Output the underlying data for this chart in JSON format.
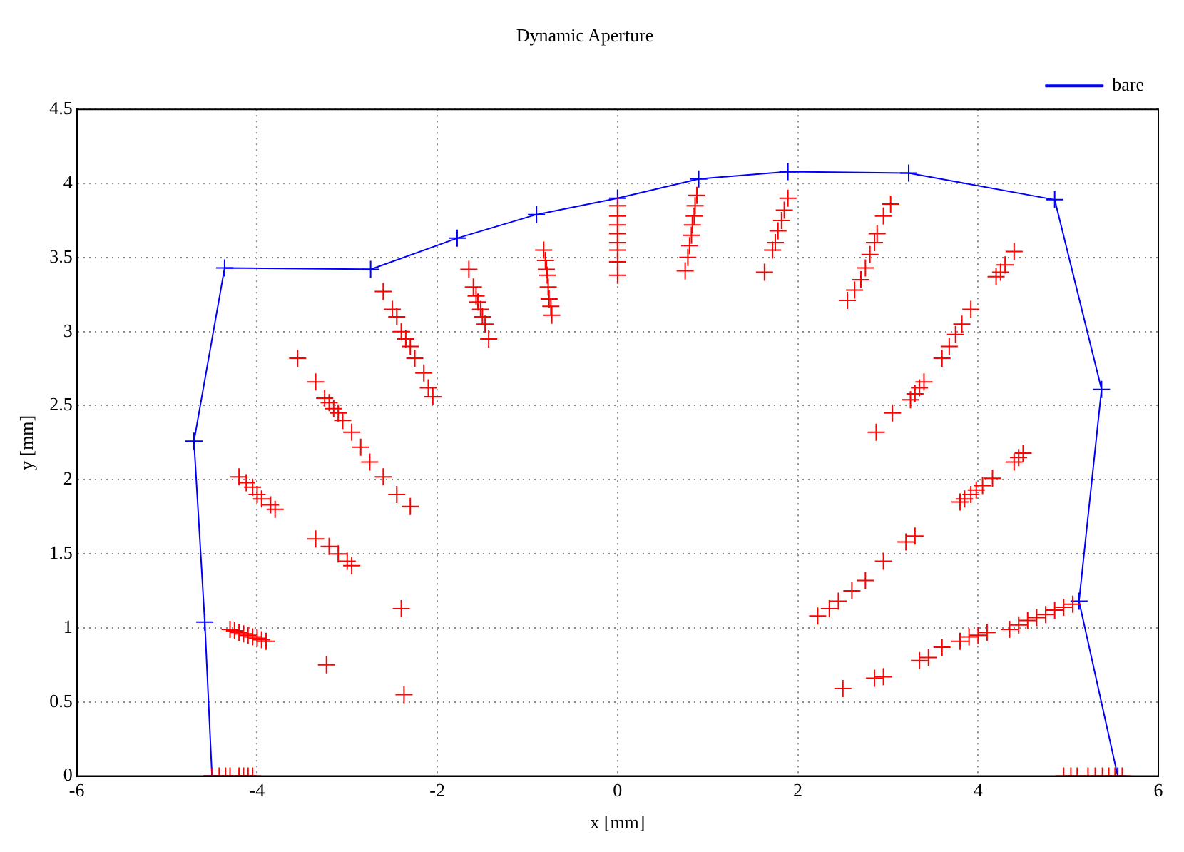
{
  "chart_data": {
    "type": "scatter",
    "title": "Dynamic Aperture",
    "xlabel": "x [mm]",
    "ylabel": "y [mm]",
    "xlim": [
      -6,
      6
    ],
    "xticks": [
      -6,
      -4,
      -2,
      0,
      2,
      4,
      6
    ],
    "ylim": [
      0,
      4.5
    ],
    "yticks": [
      0,
      0.5,
      1,
      1.5,
      2,
      2.5,
      3,
      3.5,
      4,
      4.5
    ],
    "grid": true,
    "legend": "top right",
    "marker": "cross",
    "series": [
      {
        "type": "scatter",
        "color": "#ff0000",
        "x": [
          -4.3,
          -4.25,
          -4.2,
          -4.15,
          -4.1,
          -4.05,
          -4.0,
          -3.95,
          -3.9,
          -3.23,
          -2.4,
          -2.37,
          -4.5,
          -4.42,
          -4.35,
          -4.3,
          -4.2,
          -4.15,
          -4.1,
          -4.05,
          -4.2,
          -4.12,
          -4.05,
          -4.0,
          -3.95,
          -3.85,
          -3.8,
          -3.35,
          -3.2,
          -3.1,
          -3.0,
          -2.95,
          -3.55,
          -3.35,
          -3.25,
          -3.2,
          -3.15,
          -3.1,
          -3.05,
          -2.95,
          -2.85,
          -2.75,
          -2.6,
          -2.45,
          -2.3,
          -2.6,
          -2.5,
          -2.45,
          -2.4,
          -2.35,
          -2.3,
          -2.25,
          -2.15,
          -2.1,
          -2.05,
          -1.65,
          -1.6,
          -1.57,
          -1.55,
          -1.52,
          -1.5,
          -1.47,
          -1.43,
          -0.82,
          -0.8,
          -0.79,
          -0.78,
          -0.77,
          -0.76,
          -0.74,
          -0.73,
          0,
          0,
          0,
          0,
          0,
          0,
          0,
          0,
          0.88,
          0.86,
          0.85,
          0.83,
          0.82,
          0.8,
          0.78,
          0.75,
          1.89,
          1.85,
          1.82,
          1.78,
          1.75,
          1.72,
          1.63,
          3.03,
          2.95,
          2.88,
          2.85,
          2.8,
          2.75,
          2.7,
          2.63,
          2.55,
          4.4,
          4.3,
          4.25,
          4.2,
          3.92,
          3.82,
          3.75,
          3.68,
          3.6,
          3.4,
          3.35,
          3.3,
          3.25,
          3.05,
          2.87,
          4.5,
          4.45,
          4.4,
          4.16,
          4.05,
          3.98,
          3.92,
          3.85,
          3.8,
          3.3,
          3.2,
          2.95,
          2.75,
          2.6,
          2.45,
          2.35,
          2.22,
          5.05,
          4.95,
          4.85,
          4.75,
          4.65,
          4.55,
          4.45,
          4.35,
          4.1,
          4.0,
          3.9,
          3.8,
          3.6,
          3.45,
          3.35,
          2.95,
          2.85,
          2.5,
          4.95,
          5.03,
          5.1,
          5.22,
          5.3,
          5.38,
          5.45,
          5.52,
          5.6
        ],
        "values": [
          0.99,
          0.98,
          0.97,
          0.96,
          0.95,
          0.94,
          0.93,
          0.92,
          0.91,
          0.75,
          1.13,
          0.55,
          0,
          0,
          0,
          0,
          0,
          0,
          0,
          0,
          2.02,
          1.98,
          1.95,
          1.9,
          1.87,
          1.83,
          1.8,
          1.6,
          1.55,
          1.5,
          1.45,
          1.42,
          2.82,
          2.66,
          2.55,
          2.52,
          2.48,
          2.45,
          2.4,
          2.32,
          2.22,
          2.12,
          2.02,
          1.9,
          1.82,
          3.27,
          3.15,
          3.1,
          3.0,
          2.95,
          2.9,
          2.82,
          2.72,
          2.62,
          2.56,
          3.42,
          3.3,
          3.24,
          3.2,
          3.15,
          3.1,
          3.05,
          2.95,
          3.55,
          3.48,
          3.42,
          3.38,
          3.3,
          3.22,
          3.17,
          3.11,
          3.85,
          3.78,
          3.72,
          3.66,
          3.6,
          3.55,
          3.47,
          3.38,
          3.92,
          3.85,
          3.78,
          3.72,
          3.65,
          3.58,
          3.5,
          3.41,
          3.9,
          3.82,
          3.75,
          3.68,
          3.6,
          3.55,
          3.4,
          3.86,
          3.78,
          3.66,
          3.6,
          3.52,
          3.43,
          3.35,
          3.28,
          3.21,
          3.54,
          3.45,
          3.4,
          3.37,
          3.15,
          3.05,
          2.98,
          2.9,
          2.82,
          2.66,
          2.62,
          2.58,
          2.54,
          2.45,
          2.32,
          2.18,
          2.15,
          2.12,
          2.01,
          1.96,
          1.93,
          1.9,
          1.87,
          1.85,
          1.62,
          1.58,
          1.45,
          1.32,
          1.25,
          1.18,
          1.13,
          1.08,
          1.16,
          1.14,
          1.12,
          1.09,
          1.07,
          1.05,
          1.02,
          0.99,
          0.97,
          0.95,
          0.94,
          0.91,
          0.87,
          0.8,
          0.78,
          0.67,
          0.66,
          0.59,
          0,
          0,
          0,
          0,
          0,
          0,
          0,
          0,
          0
        ]
      },
      {
        "type": "line",
        "name": "bare",
        "color": "#0000ff",
        "x": [
          -4.5,
          -4.58,
          -4.7,
          -4.36,
          -2.74,
          -1.78,
          -0.9,
          0,
          0.9,
          1.89,
          3.23,
          4.85,
          5.37,
          5.12,
          5.55
        ],
        "values": [
          0,
          1.04,
          2.26,
          3.43,
          3.42,
          3.63,
          3.79,
          3.9,
          4.03,
          4.08,
          4.07,
          3.89,
          2.61,
          1.18,
          0
        ]
      }
    ]
  }
}
